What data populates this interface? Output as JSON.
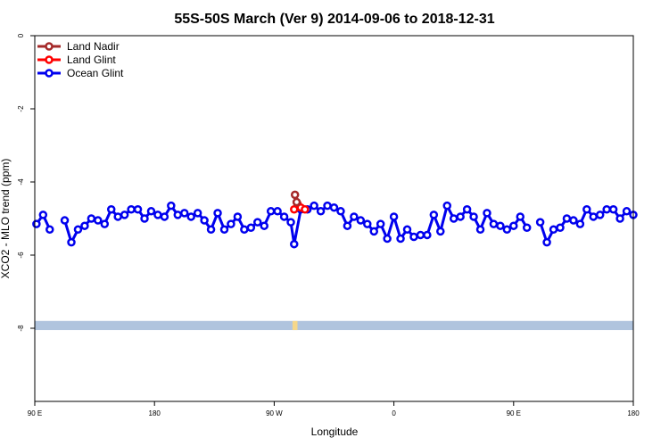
{
  "chart_data": {
    "type": "line",
    "title": "55S-50S March (Ver 9)   2014-09-06 to 2018-12-31",
    "xlabel": "Longitude",
    "ylabel": "XCO2 - MLO trend (ppm)",
    "xlim": [
      90,
      450
    ],
    "ylim": [
      -10,
      0
    ],
    "x_ticks": [
      {
        "value": 90,
        "label": "90 E"
      },
      {
        "value": 162,
        "label": "180"
      },
      {
        "value": 234,
        "label": "90 W"
      },
      {
        "value": 306,
        "label": "0"
      },
      {
        "value": 378,
        "label": "90 E"
      },
      {
        "value": 450,
        "label": "180"
      }
    ],
    "y_ticks": [
      {
        "value": 0,
        "label": "0"
      },
      {
        "value": -2,
        "label": "-2"
      },
      {
        "value": -4,
        "label": "-4"
      },
      {
        "value": -6,
        "label": "-6"
      },
      {
        "value": -8,
        "label": "-8"
      }
    ],
    "legend_position": "top-left",
    "series": [
      {
        "name": "Land Nadir",
        "color": "#a52a2a",
        "points": [
          [
            246.5,
            -4.35
          ],
          [
            247.5,
            -4.55
          ]
        ]
      },
      {
        "name": "Land Glint",
        "color": "#ff0000",
        "points": [
          [
            246.0,
            -4.75
          ],
          [
            248.0,
            -4.6
          ],
          [
            250.0,
            -4.7
          ],
          [
            252.5,
            -4.75
          ]
        ]
      },
      {
        "name": "Ocean Glint",
        "color": "#0000ee",
        "segments": [
          [
            [
              91,
              -5.15
            ],
            [
              95,
              -4.9
            ],
            [
              99,
              -5.3
            ]
          ],
          [
            [
              108,
              -5.05
            ],
            [
              112,
              -5.65
            ],
            [
              116,
              -5.3
            ],
            [
              120,
              -5.2
            ],
            [
              124,
              -5.0
            ],
            [
              128,
              -5.05
            ],
            [
              132,
              -5.15
            ],
            [
              136,
              -4.75
            ],
            [
              140,
              -4.95
            ],
            [
              144,
              -4.9
            ],
            [
              148,
              -4.75
            ],
            [
              152,
              -4.75
            ],
            [
              156,
              -5.0
            ],
            [
              160,
              -4.8
            ],
            [
              164,
              -4.9
            ],
            [
              168,
              -4.95
            ],
            [
              172,
              -4.65
            ],
            [
              176,
              -4.9
            ],
            [
              180,
              -4.85
            ],
            [
              184,
              -4.95
            ],
            [
              188,
              -4.85
            ],
            [
              192,
              -5.05
            ],
            [
              196,
              -5.3
            ],
            [
              200,
              -4.85
            ],
            [
              204,
              -5.3
            ],
            [
              208,
              -5.15
            ],
            [
              212,
              -4.95
            ],
            [
              216,
              -5.3
            ],
            [
              220,
              -5.25
            ],
            [
              224,
              -5.1
            ],
            [
              228,
              -5.2
            ],
            [
              232,
              -4.8
            ],
            [
              236,
              -4.8
            ],
            [
              240,
              -4.95
            ],
            [
              244,
              -5.1
            ],
            [
              246,
              -5.7
            ],
            [
              250,
              -4.75
            ],
            [
              254,
              -4.75
            ],
            [
              258,
              -4.65
            ],
            [
              262,
              -4.8
            ],
            [
              266,
              -4.65
            ],
            [
              270,
              -4.7
            ],
            [
              274,
              -4.8
            ],
            [
              278,
              -5.2
            ],
            [
              282,
              -4.95
            ],
            [
              286,
              -5.05
            ],
            [
              290,
              -5.15
            ],
            [
              294,
              -5.35
            ],
            [
              298,
              -5.15
            ],
            [
              302,
              -5.55
            ],
            [
              306,
              -4.95
            ],
            [
              310,
              -5.55
            ],
            [
              314,
              -5.3
            ],
            [
              318,
              -5.5
            ],
            [
              322,
              -5.45
            ],
            [
              326,
              -5.45
            ],
            [
              330,
              -4.9
            ],
            [
              334,
              -5.35
            ],
            [
              338,
              -4.65
            ],
            [
              342,
              -5.0
            ],
            [
              346,
              -4.95
            ],
            [
              350,
              -4.75
            ],
            [
              354,
              -4.95
            ],
            [
              358,
              -5.3
            ],
            [
              362,
              -4.85
            ],
            [
              366,
              -5.15
            ],
            [
              370,
              -5.2
            ],
            [
              374,
              -5.3
            ],
            [
              378,
              -5.2
            ],
            [
              382,
              -4.95
            ],
            [
              386,
              -5.25
            ]
          ],
          [
            [
              394,
              -5.1
            ],
            [
              398,
              -5.65
            ],
            [
              402,
              -5.3
            ],
            [
              406,
              -5.25
            ],
            [
              410,
              -5.0
            ],
            [
              414,
              -5.05
            ],
            [
              418,
              -5.15
            ],
            [
              422,
              -4.75
            ],
            [
              426,
              -4.95
            ],
            [
              430,
              -4.9
            ],
            [
              434,
              -4.75
            ],
            [
              438,
              -4.75
            ],
            [
              442,
              -5.0
            ],
            [
              446,
              -4.8
            ],
            [
              450,
              -4.9
            ]
          ]
        ]
      }
    ],
    "map_strip": {
      "y_top": -7.8,
      "y_bottom": -8.05,
      "band_color": "#b0c4de",
      "land_color": "#f5d78a",
      "land_x": [
        [
          245,
          248
        ]
      ]
    }
  }
}
